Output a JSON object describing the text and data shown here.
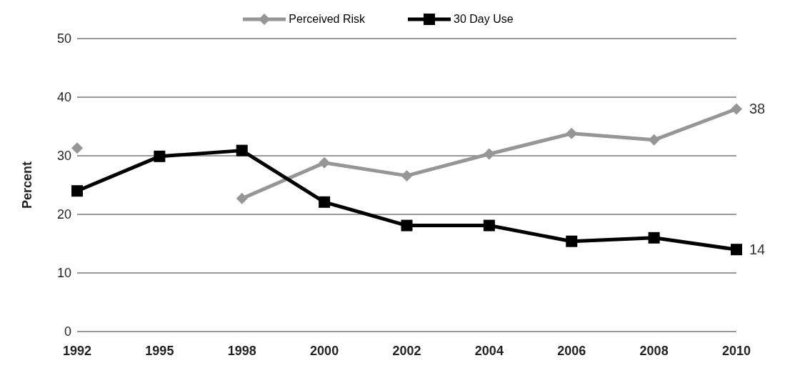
{
  "chart_data": {
    "type": "line",
    "ylabel": "Percent",
    "categories": [
      "1992",
      "1995",
      "1998",
      "2000",
      "2002",
      "2004",
      "2006",
      "2008",
      "2010"
    ],
    "series": [
      {
        "name": "Perceived Risk",
        "color": "#969696",
        "marker": "diamond",
        "values": [
          31.3,
          null,
          22.7,
          28.8,
          26.6,
          30.3,
          33.8,
          32.7,
          38
        ],
        "value_labels": [
          null,
          null,
          null,
          null,
          null,
          null,
          null,
          null,
          "38"
        ]
      },
      {
        "name": "30 Day Use",
        "color": "#000000",
        "marker": "square",
        "values": [
          24.0,
          29.9,
          30.9,
          22.1,
          18.1,
          18.1,
          15.4,
          16.0,
          14
        ],
        "value_labels": [
          null,
          null,
          null,
          null,
          null,
          null,
          null,
          null,
          "14"
        ]
      }
    ],
    "ylim": [
      0,
      50
    ],
    "yticks": [
      0,
      10,
      20,
      30,
      40,
      50
    ],
    "grid": "y",
    "legend": "top",
    "line_style": "solid"
  }
}
